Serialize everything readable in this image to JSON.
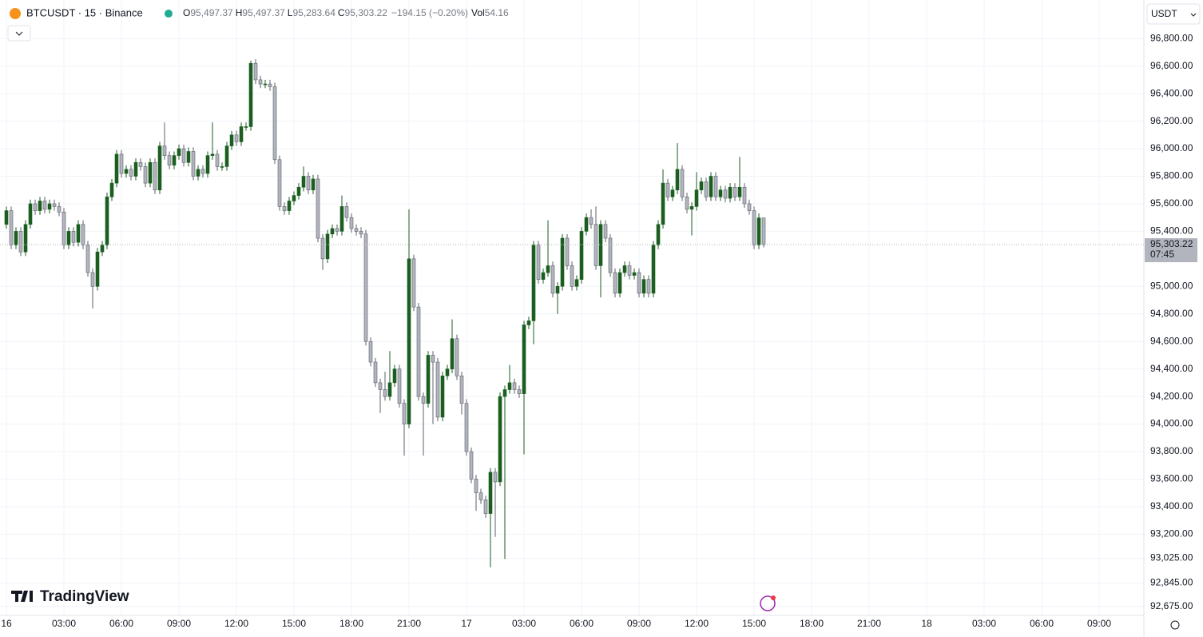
{
  "chart_data": {
    "type": "candlestick",
    "symbol": "BTCUSDT · 15 · Binance",
    "ohlc_header": [
      {
        "key": "O",
        "value": "95,497.37"
      },
      {
        "key": "H",
        "value": "95,497.37"
      },
      {
        "key": "L",
        "value": "95,283.64"
      },
      {
        "key": "C",
        "value": "95,303.22"
      }
    ],
    "change": "−194.15 (−0.20%)",
    "volume_key": "Vol",
    "volume": "54.16",
    "currency": "USDT",
    "brand": "TradingView",
    "up_color": "#1b5e20",
    "down_color": "#b2b5be",
    "grid": true,
    "last_price": {
      "value": 95303.22,
      "label": "95,303.22"
    },
    "countdown": "07:45",
    "ylim": [
      92610,
      97080
    ],
    "yticks": [
      {
        "value": 96800,
        "label": "96,800.00"
      },
      {
        "value": 96600,
        "label": "96,600.00"
      },
      {
        "value": 96400,
        "label": "96,400.00"
      },
      {
        "value": 96200,
        "label": "96,200.00"
      },
      {
        "value": 96000,
        "label": "96,000.00"
      },
      {
        "value": 95800,
        "label": "95,800.00"
      },
      {
        "value": 95600,
        "label": "95,600.00"
      },
      {
        "value": 95400,
        "label": "95,400.00"
      },
      {
        "value": 95000,
        "label": "95,000.00"
      },
      {
        "value": 94800,
        "label": "94,800.00"
      },
      {
        "value": 94600,
        "label": "94,600.00"
      },
      {
        "value": 94400,
        "label": "94,400.00"
      },
      {
        "value": 94200,
        "label": "94,200.00"
      },
      {
        "value": 94000,
        "label": "94,000.00"
      },
      {
        "value": 93800,
        "label": "93,800.00"
      },
      {
        "value": 93600,
        "label": "93,600.00"
      },
      {
        "value": 93400,
        "label": "93,400.00"
      },
      {
        "value": 93200,
        "label": "93,200.00"
      },
      {
        "value": 93025,
        "label": "93,025.00"
      },
      {
        "value": 92845,
        "label": "92,845.00"
      },
      {
        "value": 92675,
        "label": "92,675.00"
      }
    ],
    "xticks": [
      {
        "value": 0,
        "label": "16"
      },
      {
        "value": 12,
        "label": "03:00"
      },
      {
        "value": 24,
        "label": "06:00"
      },
      {
        "value": 36,
        "label": "09:00"
      },
      {
        "value": 48,
        "label": "12:00"
      },
      {
        "value": 60,
        "label": "15:00"
      },
      {
        "value": 72,
        "label": "18:00"
      },
      {
        "value": 84,
        "label": "21:00"
      },
      {
        "value": 96,
        "label": "17"
      },
      {
        "value": 108,
        "label": "03:00"
      },
      {
        "value": 120,
        "label": "06:00"
      },
      {
        "value": 132,
        "label": "09:00"
      },
      {
        "value": 144,
        "label": "12:00"
      },
      {
        "value": 156,
        "label": "15:00"
      },
      {
        "value": 168,
        "label": "18:00"
      },
      {
        "value": 180,
        "label": "21:00"
      },
      {
        "value": 192,
        "label": "18"
      },
      {
        "value": 204,
        "label": "03:00"
      },
      {
        "value": 216,
        "label": "06:00"
      },
      {
        "value": 228,
        "label": "09:00"
      }
    ],
    "candles": [
      [
        95450,
        95580,
        95420,
        95550
      ],
      [
        95550,
        95580,
        95270,
        95300
      ],
      [
        95300,
        95430,
        95270,
        95400
      ],
      [
        95400,
        95430,
        95220,
        95250
      ],
      [
        95250,
        95480,
        95220,
        95450
      ],
      [
        95450,
        95630,
        95420,
        95600
      ],
      [
        95600,
        95630,
        95520,
        95550
      ],
      [
        95550,
        95650,
        95520,
        95620
      ],
      [
        95620,
        95650,
        95530,
        95560
      ],
      [
        95560,
        95630,
        95530,
        95600
      ],
      [
        95600,
        95630,
        95550,
        95580
      ],
      [
        95580,
        95610,
        95510,
        95540
      ],
      [
        95540,
        95570,
        95270,
        95300
      ],
      [
        95300,
        95430,
        95270,
        95400
      ],
      [
        95400,
        95430,
        95290,
        95320
      ],
      [
        95320,
        95480,
        95290,
        95450
      ],
      [
        95450,
        95480,
        95270,
        95300
      ],
      [
        95300,
        95330,
        95070,
        95100
      ],
      [
        95100,
        95130,
        94840,
        95000
      ],
      [
        95000,
        95280,
        94970,
        95250
      ],
      [
        95250,
        95330,
        95220,
        95300
      ],
      [
        95300,
        95680,
        95270,
        95650
      ],
      [
        95650,
        95780,
        95620,
        95750
      ],
      [
        95750,
        95990,
        95720,
        95960
      ],
      [
        95960,
        95990,
        95790,
        95820
      ],
      [
        95820,
        95880,
        95790,
        95850
      ],
      [
        95850,
        95880,
        95770,
        95800
      ],
      [
        95800,
        95930,
        95770,
        95900
      ],
      [
        95900,
        95930,
        95840,
        95870
      ],
      [
        95870,
        95900,
        95720,
        95750
      ],
      [
        95750,
        95930,
        95720,
        95900
      ],
      [
        95900,
        95930,
        95670,
        95700
      ],
      [
        95700,
        96050,
        95670,
        96020
      ],
      [
        96020,
        96190,
        95920,
        95950
      ],
      [
        95950,
        95980,
        95850,
        95880
      ],
      [
        95880,
        95980,
        95850,
        95950
      ],
      [
        95950,
        96030,
        95920,
        96000
      ],
      [
        96000,
        96030,
        95870,
        95900
      ],
      [
        95900,
        96010,
        95870,
        95980
      ],
      [
        95980,
        96010,
        95770,
        95800
      ],
      [
        95800,
        95880,
        95770,
        95850
      ],
      [
        95850,
        95880,
        95790,
        95820
      ],
      [
        95820,
        95980,
        95790,
        95950
      ],
      [
        95950,
        96190,
        95920,
        95960
      ],
      [
        95960,
        95990,
        95840,
        95870
      ],
      [
        95870,
        95900,
        95840,
        95870
      ],
      [
        95870,
        96050,
        95840,
        96020
      ],
      [
        96020,
        96130,
        95990,
        96100
      ],
      [
        96100,
        96130,
        96020,
        96050
      ],
      [
        96050,
        96190,
        96020,
        96160
      ],
      [
        96160,
        96190,
        96130,
        96160
      ],
      [
        96160,
        96640,
        96130,
        96620
      ],
      [
        96620,
        96650,
        96470,
        96500
      ],
      [
        96500,
        96530,
        96440,
        96470
      ],
      [
        96470,
        96500,
        96440,
        96470
      ],
      [
        96470,
        96500,
        96420,
        96450
      ],
      [
        96450,
        96480,
        95890,
        95920
      ],
      [
        95920,
        95950,
        95550,
        95580
      ],
      [
        95580,
        95610,
        95520,
        95550
      ],
      [
        95550,
        95650,
        95520,
        95620
      ],
      [
        95620,
        95690,
        95590,
        95660
      ],
      [
        95660,
        95750,
        95630,
        95720
      ],
      [
        95720,
        95870,
        95690,
        95800
      ],
      [
        95800,
        95830,
        95670,
        95700
      ],
      [
        95700,
        95810,
        95670,
        95780
      ],
      [
        95780,
        95810,
        95320,
        95350
      ],
      [
        95350,
        95380,
        95120,
        95200
      ],
      [
        95200,
        95410,
        95170,
        95380
      ],
      [
        95380,
        95450,
        95350,
        95420
      ],
      [
        95420,
        95450,
        95370,
        95400
      ],
      [
        95400,
        95660,
        95370,
        95580
      ],
      [
        95580,
        95610,
        95470,
        95500
      ],
      [
        95500,
        95530,
        95390,
        95420
      ],
      [
        95420,
        95450,
        95370,
        95400
      ],
      [
        95400,
        95430,
        95350,
        95380
      ],
      [
        95380,
        95410,
        94570,
        94600
      ],
      [
        94600,
        94630,
        94420,
        94450
      ],
      [
        94450,
        94480,
        94270,
        94300
      ],
      [
        94300,
        94330,
        94080,
        94250
      ],
      [
        94250,
        94380,
        94170,
        94200
      ],
      [
        94200,
        94530,
        94170,
        94300
      ],
      [
        94300,
        94430,
        94270,
        94400
      ],
      [
        94400,
        94430,
        94120,
        94150
      ],
      [
        94150,
        94180,
        93770,
        94000
      ],
      [
        94000,
        95560,
        93970,
        95200
      ],
      [
        95200,
        95230,
        94820,
        94850
      ],
      [
        94850,
        94880,
        94170,
        94200
      ],
      [
        94200,
        94230,
        93770,
        94150
      ],
      [
        94150,
        94530,
        94120,
        94500
      ],
      [
        94500,
        94530,
        94000,
        94450
      ],
      [
        94450,
        94480,
        94020,
        94050
      ],
      [
        94050,
        94380,
        94020,
        94350
      ],
      [
        94350,
        94430,
        94320,
        94400
      ],
      [
        94400,
        94760,
        94370,
        94620
      ],
      [
        94620,
        94650,
        94320,
        94350
      ],
      [
        94350,
        94380,
        94070,
        94150
      ],
      [
        94150,
        94180,
        93770,
        93800
      ],
      [
        93800,
        93830,
        93570,
        93600
      ],
      [
        93600,
        93630,
        93370,
        93500
      ],
      [
        93500,
        93530,
        93420,
        93450
      ],
      [
        93450,
        93480,
        93320,
        93350
      ],
      [
        93350,
        93680,
        92960,
        93650
      ],
      [
        93650,
        93680,
        93180,
        93580
      ],
      [
        93580,
        94230,
        93550,
        94200
      ],
      [
        94200,
        94280,
        93020,
        94250
      ],
      [
        94250,
        94430,
        94220,
        94300
      ],
      [
        94300,
        94330,
        94220,
        94250
      ],
      [
        94250,
        94280,
        94190,
        94220
      ],
      [
        94220,
        94750,
        93780,
        94720
      ],
      [
        94720,
        94780,
        94690,
        94750
      ],
      [
        94750,
        95330,
        94580,
        95300
      ],
      [
        95300,
        95330,
        95020,
        95050
      ],
      [
        95050,
        95130,
        95020,
        95100
      ],
      [
        95100,
        95480,
        95070,
        95150
      ],
      [
        95150,
        95180,
        94920,
        94950
      ],
      [
        94950,
        95030,
        94800,
        95000
      ],
      [
        95000,
        95380,
        94970,
        95350
      ],
      [
        95350,
        95380,
        95120,
        95150
      ],
      [
        95150,
        95180,
        94970,
        95000
      ],
      [
        95000,
        95080,
        94970,
        95050
      ],
      [
        95050,
        95430,
        95020,
        95400
      ],
      [
        95400,
        95530,
        95370,
        95500
      ],
      [
        95500,
        95560,
        95420,
        95450
      ],
      [
        95450,
        95580,
        95120,
        95150
      ],
      [
        95150,
        95480,
        94920,
        95450
      ],
      [
        95450,
        95480,
        95320,
        95350
      ],
      [
        95350,
        95380,
        95070,
        95100
      ],
      [
        95100,
        95130,
        94920,
        94950
      ],
      [
        94950,
        95130,
        94920,
        95100
      ],
      [
        95100,
        95180,
        95070,
        95150
      ],
      [
        95150,
        95180,
        95050,
        95080
      ],
      [
        95080,
        95130,
        95050,
        95100
      ],
      [
        95100,
        95130,
        94920,
        94950
      ],
      [
        94950,
        95080,
        94920,
        95050
      ],
      [
        95050,
        95080,
        94920,
        94950
      ],
      [
        94950,
        95330,
        94920,
        95300
      ],
      [
        95300,
        95480,
        95270,
        95450
      ],
      [
        95450,
        95850,
        95420,
        95750
      ],
      [
        95750,
        95780,
        95620,
        95650
      ],
      [
        95650,
        95730,
        95620,
        95700
      ],
      [
        95700,
        96040,
        95670,
        95850
      ],
      [
        95850,
        95880,
        95620,
        95650
      ],
      [
        95650,
        95680,
        95530,
        95560
      ],
      [
        95560,
        95610,
        95370,
        95580
      ],
      [
        95580,
        95830,
        95550,
        95700
      ],
      [
        95700,
        95790,
        95670,
        95760
      ],
      [
        95760,
        95790,
        95620,
        95650
      ],
      [
        95650,
        95830,
        95620,
        95800
      ],
      [
        95800,
        95830,
        95620,
        95650
      ],
      [
        95650,
        95730,
        95620,
        95700
      ],
      [
        95700,
        95730,
        95610,
        95640
      ],
      [
        95640,
        95750,
        95610,
        95720
      ],
      [
        95720,
        95750,
        95620,
        95650
      ],
      [
        95650,
        95940,
        95620,
        95720
      ],
      [
        95720,
        95750,
        95570,
        95600
      ],
      [
        95600,
        95630,
        95520,
        95550
      ],
      [
        95550,
        95580,
        95270,
        95300
      ],
      [
        95300,
        95530,
        95270,
        95497.37
      ],
      [
        95497.37,
        95497.37,
        95283.64,
        95303.22
      ]
    ]
  }
}
